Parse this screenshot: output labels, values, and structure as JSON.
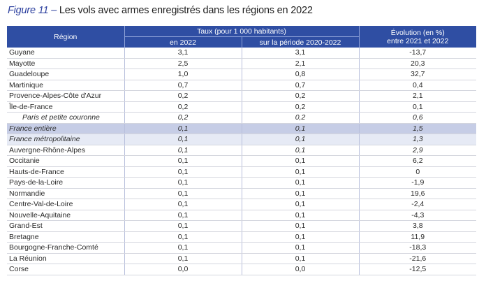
{
  "title": {
    "figure_label": "Figure 11 –",
    "text": " Les vols avec armes enregistrés dans les régions en 2022"
  },
  "table": {
    "header": {
      "region": "Région",
      "taux_group": "Taux (pour 1 000 habitants)",
      "taux_2022": "en 2022",
      "taux_periode": "sur la période 2020-2022",
      "evolution_line1": "Évolution (en %)",
      "evolution_line2": "entre 2021 et 2022"
    },
    "rows": [
      {
        "region": "Guyane",
        "taux_2022": "3,1",
        "taux_periode": "3,1",
        "evolution": "-13,7"
      },
      {
        "region": "Mayotte",
        "taux_2022": "2,5",
        "taux_periode": "2,1",
        "evolution": "20,3"
      },
      {
        "region": "Guadeloupe",
        "taux_2022": "1,0",
        "taux_periode": "0,8",
        "evolution": "32,7"
      },
      {
        "region": "Martinique",
        "taux_2022": "0,7",
        "taux_periode": "0,7",
        "evolution": "0,4"
      },
      {
        "region": "Provence-Alpes-Côte d'Azur",
        "taux_2022": "0,2",
        "taux_periode": "0,2",
        "evolution": "2,1"
      },
      {
        "region": "Île-de-France",
        "taux_2022": "0,2",
        "taux_periode": "0,2",
        "evolution": "0,1"
      },
      {
        "region": "Paris et petite couronne",
        "taux_2022": "0,2",
        "taux_periode": "0,2",
        "evolution": "0,6"
      },
      {
        "region": "France entière",
        "taux_2022": "0,1",
        "taux_periode": "0,1",
        "evolution": "1,5"
      },
      {
        "region": "France métropolitaine",
        "taux_2022": "0,1",
        "taux_periode": "0,1",
        "evolution": "1,3"
      },
      {
        "region": "Auvergne-Rhône-Alpes",
        "taux_2022": "0,1",
        "taux_periode": "0,1",
        "evolution": "2,9"
      },
      {
        "region": "Occitanie",
        "taux_2022": "0,1",
        "taux_periode": "0,1",
        "evolution": "6,2"
      },
      {
        "region": "Hauts-de-France",
        "taux_2022": "0,1",
        "taux_periode": "0,1",
        "evolution": "0"
      },
      {
        "region": "Pays-de-la-Loire",
        "taux_2022": "0,1",
        "taux_periode": "0,1",
        "evolution": "-1,9"
      },
      {
        "region": "Normandie",
        "taux_2022": "0,1",
        "taux_periode": "0,1",
        "evolution": "19,6"
      },
      {
        "region": "Centre-Val-de-Loire",
        "taux_2022": "0,1",
        "taux_periode": "0,1",
        "evolution": "-2,4"
      },
      {
        "region": "Nouvelle-Aquitaine",
        "taux_2022": "0,1",
        "taux_periode": "0,1",
        "evolution": "-4,3"
      },
      {
        "region": "Grand-Est",
        "taux_2022": "0,1",
        "taux_periode": "0,1",
        "evolution": "3,8"
      },
      {
        "region": "Bretagne",
        "taux_2022": "0,1",
        "taux_periode": "0,1",
        "evolution": "11,9"
      },
      {
        "region": "Bourgogne-Franche-Comté",
        "taux_2022": "0,1",
        "taux_periode": "0,1",
        "evolution": "-18,3"
      },
      {
        "region": "La Réunion",
        "taux_2022": "0,1",
        "taux_periode": "0,1",
        "evolution": "-21,6"
      },
      {
        "region": "Corse",
        "taux_2022": "0,0",
        "taux_periode": "0,0",
        "evolution": "-12,5"
      }
    ]
  },
  "colors": {
    "header_bg": "#2f4ea3",
    "figure_label": "#2b3f9e",
    "highlight_strong": "#c6cde6",
    "highlight_light": "#e6eaf5"
  }
}
